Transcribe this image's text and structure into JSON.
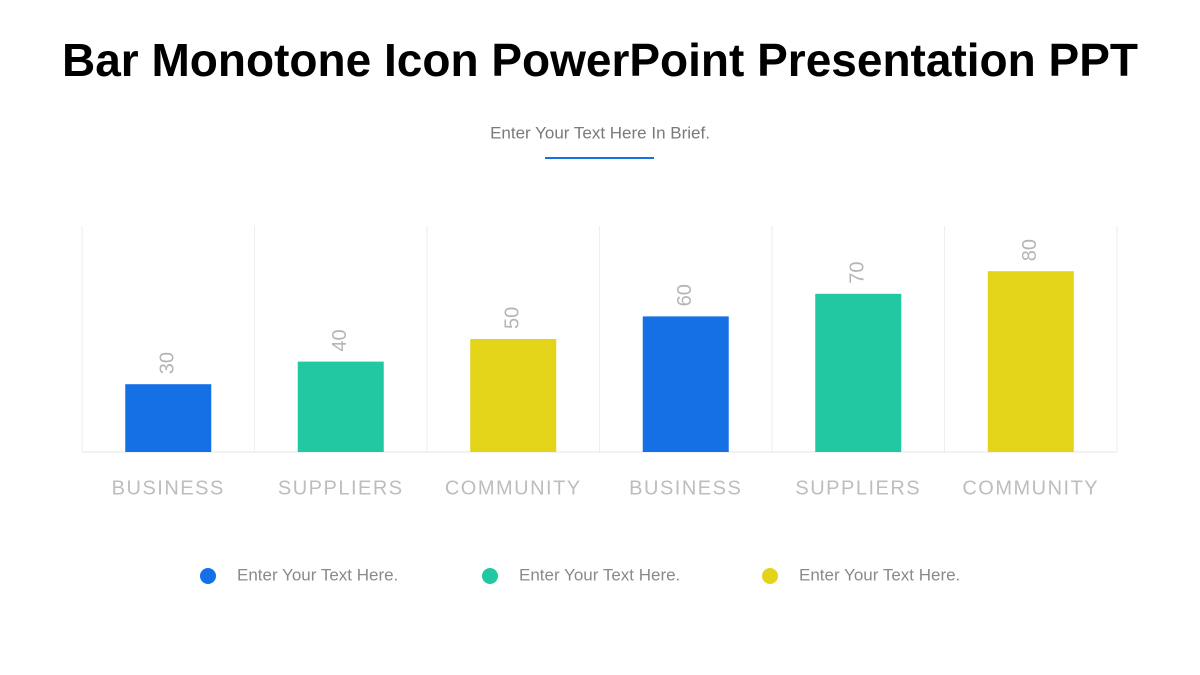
{
  "chart_data": {
    "type": "bar",
    "title": "Bar Monotone Icon PowerPoint Presentation PPT",
    "subtitle": "Enter Your Text Here In Brief.",
    "categories": [
      "BUSINESS",
      "SUPPLIERS",
      "COMMUNITY",
      "BUSINESS",
      "SUPPLIERS",
      "COMMUNITY"
    ],
    "values": [
      30,
      40,
      50,
      60,
      70,
      80
    ],
    "colors": [
      "#1570e6",
      "#22c8a2",
      "#e3d41a",
      "#1570e6",
      "#22c8a2",
      "#e3d41a"
    ],
    "ylim": [
      0,
      100
    ],
    "legend": [
      {
        "name": "Enter Your Text Here.",
        "color": "#1570e6"
      },
      {
        "name": "Enter Your Text Here.",
        "color": "#22c8a2"
      },
      {
        "name": "Enter Your Text Here.",
        "color": "#e3d41a"
      }
    ]
  }
}
